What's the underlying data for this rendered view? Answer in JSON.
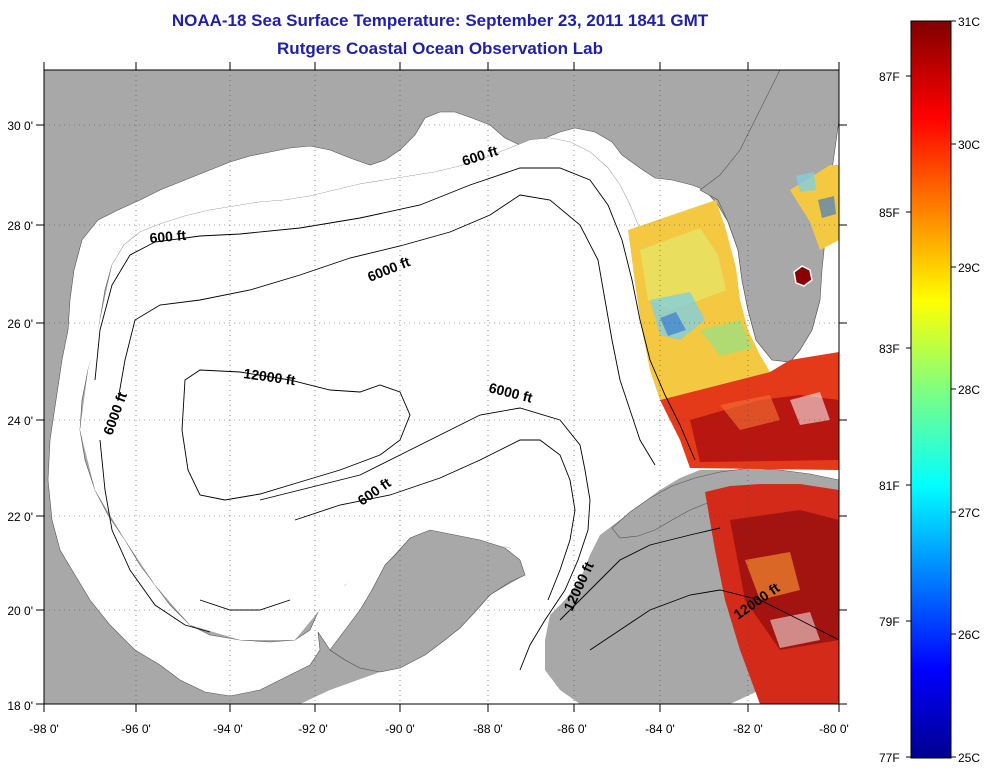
{
  "title": "NOAA-18 Sea Surface Temperature:  September 23, 2011 1841 GMT",
  "subtitle": "Rutgers Coastal Ocean Observation Lab",
  "map": {
    "lon_ticks": [
      "-98 0'",
      "-96 0'",
      "-94 0'",
      "-92 0'",
      "-90 0'",
      "-88 0'",
      "-86 0'",
      "-84 0'",
      "-82 0'",
      "-80 0'"
    ],
    "lat_ticks": [
      "18 0'",
      "20 0'",
      "22 0'",
      "24 0'",
      "26 0'",
      "28 0'",
      "30 0'"
    ],
    "lon_range": [
      -98,
      -80
    ],
    "lat_range": [
      18,
      31
    ],
    "grid": "dotted",
    "land_color": "#a8a8a8",
    "ocean_color": "#ffffff",
    "contour_labels": [
      "600 ft",
      "600 ft",
      "6000 ft",
      "12000 ft",
      "6000 ft",
      "6000 ft",
      "600 ft",
      "12000 ft",
      "12000 ft"
    ]
  },
  "colorbar": {
    "celsius_labels": [
      "31C",
      "30C",
      "29C",
      "28C",
      "27C",
      "26C",
      "25C"
    ],
    "fahrenheit_labels": [
      "87F",
      "85F",
      "83F",
      "81F",
      "79F",
      "77F"
    ],
    "range_c": [
      25,
      31
    ]
  }
}
